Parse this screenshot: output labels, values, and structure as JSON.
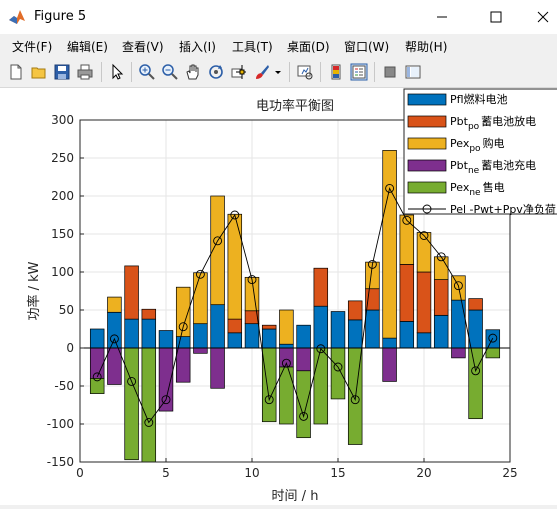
{
  "window": {
    "title": "Figure 5",
    "minimize_icon": "minimize-icon",
    "maximize_icon": "maximize-icon",
    "close_icon": "close-icon"
  },
  "menu": [
    "文件(F)",
    "编辑(E)",
    "查看(V)",
    "插入(I)",
    "工具(T)",
    "桌面(D)",
    "窗口(W)",
    "帮助(H)"
  ],
  "toolbar_icons": [
    "new-figure-icon",
    "open-file-icon",
    "save-icon",
    "print-icon",
    "pointer-icon",
    "zoom-in-icon",
    "zoom-out-icon",
    "pan-icon",
    "rotate-icon",
    "data-cursor-icon",
    "brush-icon",
    "link-plot-icon",
    "colorbar-icon",
    "legend-icon",
    "hide-plot-tools-icon",
    "show-plot-tools-icon"
  ],
  "chart_data": {
    "type": "bar",
    "title": "电功率平衡图",
    "xlabel": "时间 / h",
    "ylabel": "功率 / kW",
    "xlim": [
      0,
      25
    ],
    "ylim": [
      -150,
      300
    ],
    "xticks": [
      0,
      5,
      10,
      15,
      20,
      25
    ],
    "yticks": [
      -150,
      -100,
      -50,
      0,
      50,
      100,
      150,
      200,
      250,
      300
    ],
    "grid": true,
    "legend_position": "top-right",
    "x": [
      1,
      2,
      3,
      4,
      5,
      6,
      7,
      8,
      9,
      10,
      11,
      12,
      13,
      14,
      15,
      16,
      17,
      18,
      19,
      20,
      21,
      22,
      23,
      24
    ],
    "series": [
      {
        "legend": "Pfl燃料电池",
        "main": "Pfl燃料电池",
        "sub": "",
        "tail": "",
        "color": "#0072bd",
        "values": [
          25,
          47,
          38,
          38,
          23,
          15,
          32,
          57,
          20,
          32,
          25,
          5,
          30,
          55,
          48,
          37,
          50,
          13,
          35,
          20,
          43,
          63,
          50,
          24
        ]
      },
      {
        "legend": "Pbtpo蓄电池放电",
        "main": "Pbt",
        "sub": "po",
        "tail": "蓄电池放电",
        "color": "#d95319",
        "values": [
          0,
          0,
          70,
          13,
          0,
          0,
          0,
          0,
          18,
          17,
          5,
          0,
          0,
          50,
          0,
          25,
          28,
          0,
          75,
          80,
          47,
          0,
          15,
          0
        ]
      },
      {
        "legend": "Pexpo购电",
        "main": "Pex",
        "sub": "po",
        "tail": "购电",
        "color": "#edb120",
        "values": [
          0,
          20,
          0,
          0,
          0,
          65,
          67,
          143,
          138,
          44,
          0,
          45,
          0,
          0,
          0,
          0,
          35,
          247,
          65,
          52,
          30,
          32,
          0,
          0
        ]
      },
      {
        "legend": "Pbtne蓄电池充电",
        "main": "Pbt",
        "sub": "ne",
        "tail": "蓄电池充电",
        "color": "#7e2f8e",
        "values": [
          -40,
          -48,
          0,
          0,
          -83,
          -45,
          -7,
          -53,
          0,
          0,
          0,
          -25,
          -30,
          0,
          0,
          0,
          0,
          -44,
          0,
          0,
          0,
          -13,
          0,
          0
        ]
      },
      {
        "legend": "Pexne售电",
        "main": "Pex",
        "sub": "ne",
        "tail": "售电",
        "color": "#77ac30",
        "values": [
          -20,
          0,
          -147,
          -150,
          0,
          0,
          0,
          0,
          0,
          0,
          -97,
          -75,
          -88,
          -100,
          -67,
          -127,
          0,
          0,
          0,
          0,
          0,
          0,
          -93,
          -13
        ]
      }
    ],
    "line": {
      "legend": "Pel -Pwt+Ppv净负荷",
      "color": "#000000",
      "marker": "circle",
      "values": [
        -38,
        12,
        -44,
        -98,
        -68,
        28,
        97,
        141,
        175,
        90,
        -68,
        -20,
        -90,
        -1,
        -25,
        -68,
        110,
        210,
        168,
        148,
        120,
        82,
        -30,
        13
      ]
    }
  }
}
